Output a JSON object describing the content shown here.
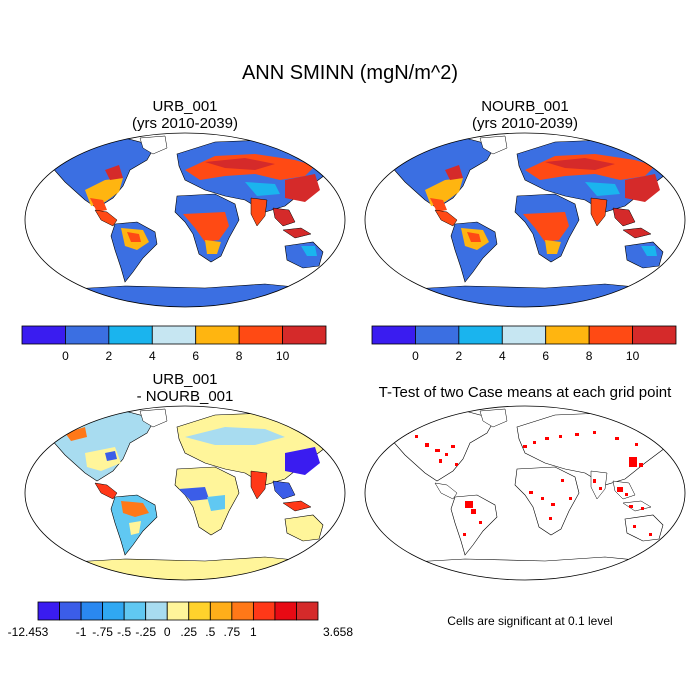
{
  "title": "ANN SMINN (mgN/m^2)",
  "panels": {
    "top_left": {
      "line1": "URB_001",
      "line2": "(yrs 2010-2039)"
    },
    "top_right": {
      "line1": "NOURB_001",
      "line2": "(yrs 2010-2039)"
    },
    "bottom_left": {
      "line1": "URB_001",
      "line2": "- NOURB_001"
    },
    "bottom_right": {
      "line1": "T-Test of two Case means at each grid point"
    }
  },
  "colorbar_main": {
    "colors": [
      "#3a1cf0",
      "#3b6fe2",
      "#1ab4ee",
      "#c6e6f2",
      "#ffb510",
      "#ff4a14",
      "#d52a2a"
    ],
    "labels": [
      "0",
      "2",
      "4",
      "6",
      "8",
      "10"
    ]
  },
  "colorbar_diff": {
    "colors": [
      "#3a1cf0",
      "#3b5de8",
      "#2a88f0",
      "#30a8f2",
      "#60c8f2",
      "#a8dcf0",
      "#fff59a",
      "#ffd22c",
      "#ffae1a",
      "#ff7818",
      "#ff3818",
      "#e80a14",
      "#d52a2a"
    ],
    "labels": [
      "-12.453",
      "-1",
      "-.75",
      "-.5",
      "-.25",
      "0",
      ".25",
      ".5",
      ".75",
      "1",
      "3.658"
    ]
  },
  "note": "Cells are significant at 0.1 level",
  "significance_color": "#ff0000",
  "map_colors": {
    "ocean": "#ffffff",
    "coast": "#000000"
  }
}
